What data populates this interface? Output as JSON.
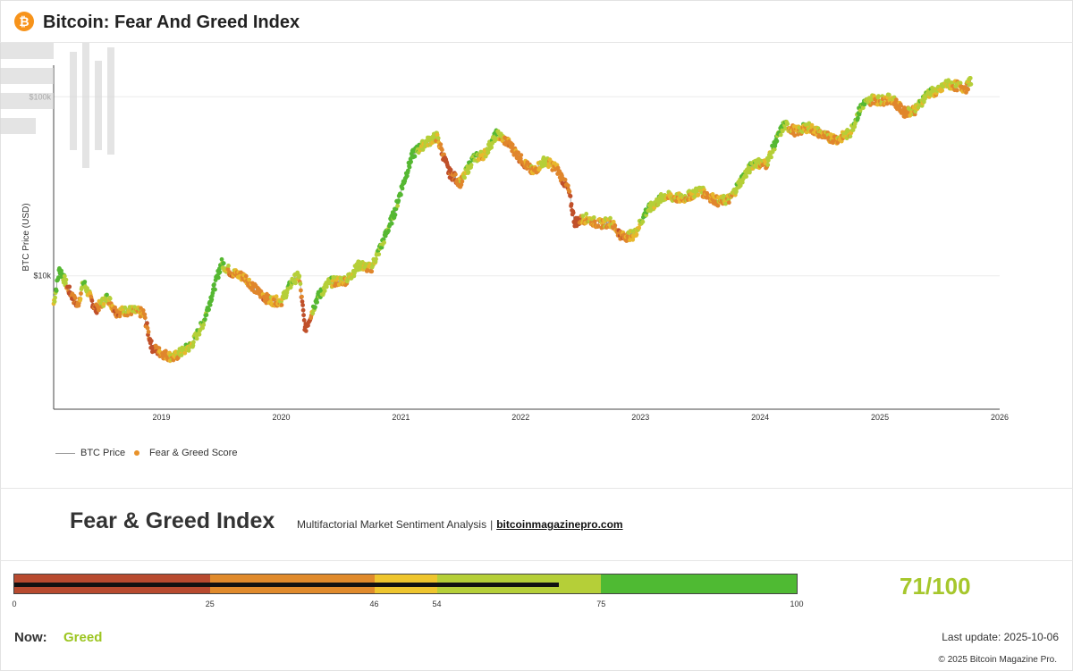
{
  "header": {
    "logo_glyph": "₿",
    "logo_icon": "bitcoin-icon",
    "title": "Bitcoin: Fear And Greed Index"
  },
  "chart_data": {
    "type": "scatter",
    "title": "",
    "xlabel": "",
    "ylabel": "BTC Price (USD)",
    "y_scale": "log",
    "ylim": [
      1800,
      150000
    ],
    "xlim": [
      2018.1,
      2026.0
    ],
    "x_ticks": [
      {
        "value": 2019,
        "label": "2019"
      },
      {
        "value": 2020,
        "label": "2020"
      },
      {
        "value": 2021,
        "label": "2021"
      },
      {
        "value": 2022,
        "label": "2022"
      },
      {
        "value": 2023,
        "label": "2023"
      },
      {
        "value": 2024,
        "label": "2024"
      },
      {
        "value": 2025,
        "label": "2025"
      },
      {
        "value": 2026,
        "label": "2026"
      }
    ],
    "y_ticks": [
      {
        "value": 10000,
        "label": "$10k"
      },
      {
        "value": 100000,
        "label": "$100k"
      }
    ],
    "grid": "horizontal",
    "legend_position": "bottom-left",
    "series": [
      {
        "name": "BTC Price",
        "role": "line",
        "color": "#999999",
        "points": [
          [
            2018.1,
            7000
          ],
          [
            2018.15,
            11000
          ],
          [
            2018.22,
            8500
          ],
          [
            2018.3,
            6800
          ],
          [
            2018.35,
            9200
          ],
          [
            2018.45,
            6500
          ],
          [
            2018.55,
            7600
          ],
          [
            2018.62,
            6300
          ],
          [
            2018.75,
            6400
          ],
          [
            2018.85,
            6200
          ],
          [
            2018.92,
            4000
          ],
          [
            2019.0,
            3700
          ],
          [
            2019.1,
            3500
          ],
          [
            2019.25,
            4100
          ],
          [
            2019.35,
            5500
          ],
          [
            2019.45,
            9000
          ],
          [
            2019.5,
            11800
          ],
          [
            2019.58,
            10500
          ],
          [
            2019.7,
            9800
          ],
          [
            2019.8,
            8200
          ],
          [
            2019.9,
            7300
          ],
          [
            2020.0,
            7200
          ],
          [
            2020.1,
            9500
          ],
          [
            2020.15,
            10000
          ],
          [
            2020.2,
            5000
          ],
          [
            2020.3,
            7500
          ],
          [
            2020.4,
            9200
          ],
          [
            2020.55,
            9500
          ],
          [
            2020.65,
            11500
          ],
          [
            2020.75,
            11000
          ],
          [
            2020.85,
            15500
          ],
          [
            2020.95,
            23000
          ],
          [
            2021.0,
            30000
          ],
          [
            2021.1,
            48000
          ],
          [
            2021.2,
            55000
          ],
          [
            2021.3,
            60000
          ],
          [
            2021.4,
            38000
          ],
          [
            2021.5,
            33000
          ],
          [
            2021.6,
            45000
          ],
          [
            2021.7,
            48000
          ],
          [
            2021.8,
            62000
          ],
          [
            2021.9,
            55000
          ],
          [
            2022.0,
            45000
          ],
          [
            2022.1,
            38000
          ],
          [
            2022.2,
            44000
          ],
          [
            2022.3,
            40000
          ],
          [
            2022.4,
            30000
          ],
          [
            2022.45,
            20000
          ],
          [
            2022.55,
            21000
          ],
          [
            2022.65,
            19500
          ],
          [
            2022.75,
            20000
          ],
          [
            2022.85,
            16500
          ],
          [
            2022.95,
            17000
          ],
          [
            2023.05,
            23000
          ],
          [
            2023.2,
            28000
          ],
          [
            2023.35,
            27000
          ],
          [
            2023.5,
            30000
          ],
          [
            2023.65,
            26000
          ],
          [
            2023.75,
            27000
          ],
          [
            2023.85,
            35000
          ],
          [
            2023.95,
            43000
          ],
          [
            2024.05,
            42000
          ],
          [
            2024.15,
            60000
          ],
          [
            2024.2,
            70000
          ],
          [
            2024.3,
            64000
          ],
          [
            2024.4,
            68000
          ],
          [
            2024.55,
            60000
          ],
          [
            2024.65,
            58000
          ],
          [
            2024.75,
            63000
          ],
          [
            2024.85,
            90000
          ],
          [
            2024.95,
            98000
          ],
          [
            2025.0,
            95000
          ],
          [
            2025.1,
            98000
          ],
          [
            2025.2,
            82000
          ],
          [
            2025.3,
            85000
          ],
          [
            2025.4,
            105000
          ],
          [
            2025.5,
            108000
          ],
          [
            2025.55,
            118000
          ],
          [
            2025.65,
            115000
          ],
          [
            2025.72,
            112000
          ],
          [
            2025.76,
            124000
          ]
        ]
      },
      {
        "name": "Fear & Greed Score",
        "role": "markers",
        "color": "#e8922a",
        "note_colorscale": "marker color follows score from red (fear) to green (greed)"
      }
    ]
  },
  "legend": {
    "price_label": "BTC Price",
    "score_label": "Fear & Greed Score"
  },
  "banner": {
    "title": "Fear & Greed Index",
    "subtitle": "Multifactorial Market Sentiment Analysis",
    "separator": "|",
    "link": "bitcoinmagazinepro.com"
  },
  "gauge": {
    "value": 71,
    "max": 100,
    "segments": [
      {
        "from": 0,
        "to": 25,
        "color": "#b84a2f"
      },
      {
        "from": 25,
        "to": 46,
        "color": "#e08a2c"
      },
      {
        "from": 46,
        "to": 54,
        "color": "#eec52e"
      },
      {
        "from": 54,
        "to": 75,
        "color": "#b5cf38"
      },
      {
        "from": 75,
        "to": 100,
        "color": "#4fba33"
      }
    ],
    "ticks": [
      0,
      25,
      46,
      54,
      75,
      100
    ]
  },
  "score_text": "71/100",
  "status": {
    "now_label": "Now:",
    "now_value": "Greed"
  },
  "last_update": "Last update: 2025-10-06",
  "copyright": "© 2025 Bitcoin Magazine Pro."
}
